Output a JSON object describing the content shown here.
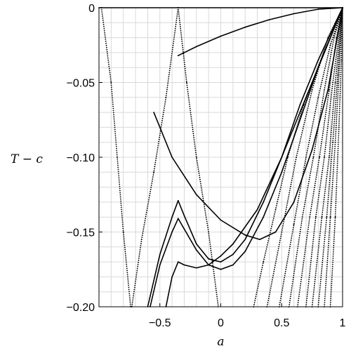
{
  "chart_data": {
    "type": "scatter",
    "title": "",
    "xlabel": "a",
    "ylabel": "T − c",
    "xlim": [
      -1,
      1
    ],
    "ylim": [
      -0.2,
      0.0
    ],
    "xticks": [
      {
        "value": -0.5,
        "label": "−0.5"
      },
      {
        "value": 0,
        "label": "0"
      },
      {
        "value": 0.5,
        "label": "0.5"
      },
      {
        "value": 1,
        "label": "1"
      }
    ],
    "yticks": [
      {
        "value": 0,
        "label": "0"
      },
      {
        "value": -0.05,
        "label": "−0.05"
      },
      {
        "value": -0.1,
        "label": "−0.10"
      },
      {
        "value": -0.15,
        "label": "−0.15"
      },
      {
        "value": -0.2,
        "label": "−0.20"
      }
    ],
    "grid": true,
    "grid_color": "#d9d9d9",
    "mark_color": "#000000",
    "legend": "none",
    "series": [
      {
        "values": [
          [
            -1.0,
            0.0
          ],
          [
            1.0,
            0.0
          ]
        ]
      },
      {
        "values": [
          [
            -0.35,
            -0.032
          ],
          [
            -0.2,
            -0.026
          ],
          [
            0.0,
            -0.019
          ],
          [
            0.2,
            -0.013
          ],
          [
            0.4,
            -0.008
          ],
          [
            0.6,
            -0.004
          ],
          [
            0.8,
            -0.001
          ],
          [
            1.0,
            0.0
          ]
        ]
      },
      {
        "values": [
          [
            -0.98,
            0.0
          ],
          [
            -0.9,
            -0.05
          ],
          [
            -0.85,
            -0.1
          ],
          [
            -0.8,
            -0.15
          ],
          [
            -0.74,
            -0.2
          ]
        ]
      },
      {
        "values": [
          [
            -0.35,
            0.0
          ],
          [
            -0.45,
            -0.06
          ],
          [
            -0.55,
            -0.11
          ],
          [
            -0.65,
            -0.155
          ],
          [
            -0.73,
            -0.2
          ]
        ]
      },
      {
        "values": [
          [
            -0.35,
            0.0
          ],
          [
            -0.28,
            -0.05
          ],
          [
            -0.2,
            -0.1
          ],
          [
            -0.1,
            -0.15
          ],
          [
            -0.02,
            -0.2
          ]
        ]
      },
      {
        "values": [
          [
            -0.6,
            -0.2
          ],
          [
            -0.5,
            -0.165
          ],
          [
            -0.4,
            -0.14
          ],
          [
            -0.35,
            -0.129
          ],
          [
            -0.3,
            -0.139
          ],
          [
            -0.2,
            -0.158
          ],
          [
            -0.1,
            -0.168
          ],
          [
            0.0,
            -0.17
          ],
          [
            0.1,
            -0.165
          ],
          [
            0.2,
            -0.155
          ],
          [
            0.35,
            -0.13
          ],
          [
            0.5,
            -0.1
          ],
          [
            0.65,
            -0.065
          ],
          [
            0.8,
            -0.035
          ],
          [
            1.0,
            0.0
          ]
        ]
      },
      {
        "values": [
          [
            -0.58,
            -0.2
          ],
          [
            -0.5,
            -0.172
          ],
          [
            -0.4,
            -0.15
          ],
          [
            -0.35,
            -0.141
          ],
          [
            -0.3,
            -0.148
          ],
          [
            -0.2,
            -0.162
          ],
          [
            -0.1,
            -0.172
          ],
          [
            0.0,
            -0.175
          ],
          [
            0.1,
            -0.172
          ],
          [
            0.2,
            -0.163
          ],
          [
            0.35,
            -0.14
          ],
          [
            0.5,
            -0.11
          ],
          [
            0.65,
            -0.075
          ],
          [
            0.8,
            -0.04
          ],
          [
            1.0,
            0.0
          ]
        ]
      },
      {
        "values": [
          [
            -0.45,
            -0.2
          ],
          [
            -0.4,
            -0.18
          ],
          [
            -0.35,
            -0.17
          ],
          [
            -0.3,
            -0.172
          ],
          [
            -0.2,
            -0.174
          ],
          [
            -0.1,
            -0.172
          ],
          [
            0.0,
            -0.166
          ],
          [
            0.1,
            -0.158
          ],
          [
            0.3,
            -0.135
          ],
          [
            0.5,
            -0.1
          ],
          [
            0.7,
            -0.06
          ],
          [
            0.85,
            -0.03
          ],
          [
            1.0,
            0.0
          ]
        ]
      },
      {
        "values": [
          [
            -0.55,
            -0.07
          ],
          [
            -0.4,
            -0.1
          ],
          [
            -0.2,
            -0.125
          ],
          [
            0.0,
            -0.142
          ],
          [
            0.2,
            -0.152
          ],
          [
            0.32,
            -0.155
          ],
          [
            0.45,
            -0.15
          ],
          [
            0.6,
            -0.13
          ],
          [
            0.75,
            -0.095
          ],
          [
            0.88,
            -0.055
          ],
          [
            1.0,
            0.0
          ]
        ]
      },
      {
        "values": [
          [
            0.27,
            -0.2
          ],
          [
            0.35,
            -0.17
          ],
          [
            0.45,
            -0.135
          ],
          [
            0.55,
            -0.1
          ],
          [
            0.68,
            -0.065
          ],
          [
            0.82,
            -0.035
          ],
          [
            1.0,
            0.0
          ]
        ]
      },
      {
        "values": [
          [
            0.38,
            -0.2
          ],
          [
            0.5,
            -0.15
          ],
          [
            0.62,
            -0.1
          ],
          [
            0.75,
            -0.055
          ],
          [
            0.88,
            -0.02
          ],
          [
            1.0,
            0.0
          ]
        ]
      },
      {
        "values": [
          [
            0.48,
            -0.2
          ],
          [
            0.6,
            -0.145
          ],
          [
            0.7,
            -0.1
          ],
          [
            0.8,
            -0.06
          ],
          [
            0.9,
            -0.025
          ],
          [
            1.0,
            0.0
          ]
        ]
      },
      {
        "values": [
          [
            0.56,
            -0.2
          ],
          [
            0.67,
            -0.14
          ],
          [
            0.76,
            -0.1
          ],
          [
            0.85,
            -0.055
          ],
          [
            0.93,
            -0.02
          ],
          [
            1.0,
            0.0
          ]
        ]
      },
      {
        "values": [
          [
            0.63,
            -0.2
          ],
          [
            0.73,
            -0.14
          ],
          [
            0.81,
            -0.1
          ],
          [
            0.89,
            -0.055
          ],
          [
            0.95,
            -0.02
          ],
          [
            1.0,
            0.0
          ]
        ]
      },
      {
        "values": [
          [
            0.7,
            -0.2
          ],
          [
            0.78,
            -0.14
          ],
          [
            0.85,
            -0.1
          ],
          [
            0.92,
            -0.05
          ],
          [
            1.0,
            0.0
          ]
        ]
      },
      {
        "values": [
          [
            0.75,
            -0.2
          ],
          [
            0.83,
            -0.14
          ],
          [
            0.89,
            -0.1
          ],
          [
            0.94,
            -0.05
          ],
          [
            1.0,
            0.0
          ]
        ]
      },
      {
        "values": [
          [
            0.8,
            -0.2
          ],
          [
            0.87,
            -0.14
          ],
          [
            0.92,
            -0.09
          ],
          [
            0.96,
            -0.045
          ],
          [
            1.0,
            0.0
          ]
        ]
      },
      {
        "values": [
          [
            0.85,
            -0.2
          ],
          [
            0.9,
            -0.14
          ],
          [
            0.94,
            -0.09
          ],
          [
            0.97,
            -0.045
          ],
          [
            1.0,
            0.0
          ]
        ]
      },
      {
        "values": [
          [
            0.9,
            -0.2
          ],
          [
            0.94,
            -0.14
          ],
          [
            0.97,
            -0.08
          ],
          [
            0.99,
            -0.035
          ],
          [
            1.0,
            0.0
          ]
        ]
      }
    ]
  }
}
